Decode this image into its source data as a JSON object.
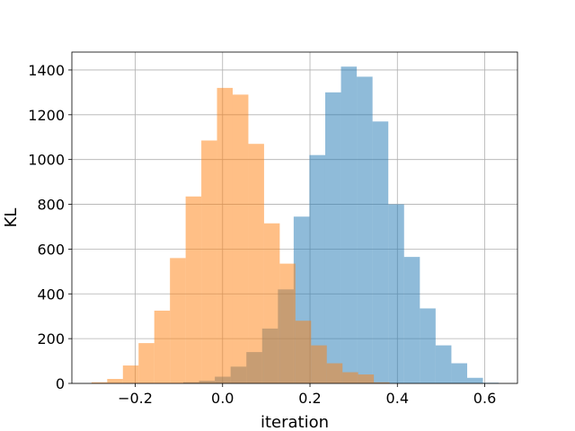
{
  "chart_data": {
    "type": "histogram",
    "title": "",
    "xlabel": "iteration",
    "ylabel": "KL",
    "xlim": [
      -0.345,
      0.675
    ],
    "ylim": [
      0,
      1480
    ],
    "grid": true,
    "legend": "none",
    "x_ticks": [
      {
        "value": -0.2,
        "label": "−0.2"
      },
      {
        "value": 0.0,
        "label": "0.0"
      },
      {
        "value": 0.2,
        "label": "0.2"
      },
      {
        "value": 0.4,
        "label": "0.4"
      },
      {
        "value": 0.6,
        "label": "0.6"
      }
    ],
    "y_ticks": [
      {
        "value": 0,
        "label": "0"
      },
      {
        "value": 200,
        "label": "200"
      },
      {
        "value": 400,
        "label": "400"
      },
      {
        "value": 600,
        "label": "600"
      },
      {
        "value": 800,
        "label": "800"
      },
      {
        "value": 1000,
        "label": "1000"
      },
      {
        "value": 1200,
        "label": "1200"
      },
      {
        "value": 1400,
        "label": "1400"
      }
    ],
    "series": [
      {
        "color": "#1f77b4",
        "alpha": 0.5,
        "bin_start": -0.09,
        "bin_width": 0.0361,
        "counts": [
          5,
          12,
          30,
          75,
          140,
          245,
          420,
          745,
          1020,
          1300,
          1415,
          1370,
          1170,
          800,
          565,
          335,
          170,
          90,
          25,
          3
        ]
      },
      {
        "color": "#ff7f0e",
        "alpha": 0.5,
        "bin_start": -0.3,
        "bin_width": 0.0359,
        "counts": [
          5,
          20,
          80,
          180,
          325,
          560,
          835,
          1085,
          1320,
          1290,
          1070,
          715,
          535,
          280,
          170,
          90,
          50,
          40,
          5
        ]
      }
    ]
  }
}
